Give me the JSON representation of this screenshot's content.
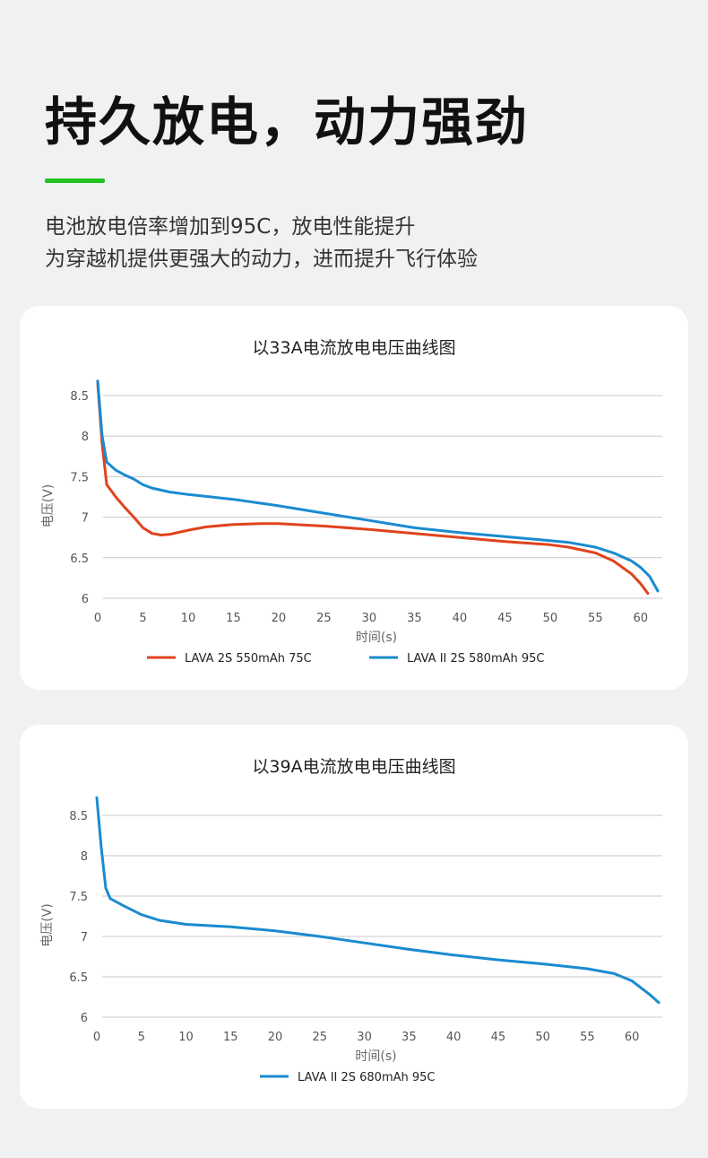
{
  "header": {
    "title": "持久放电，动力强劲",
    "subtitle_lines": [
      "电池放电倍率增加到95C，放电性能提升",
      "为穿越机提供更强大的动力，进而提升飞行体验"
    ],
    "accent_color": "#1fc423"
  },
  "chart_data": [
    {
      "type": "line",
      "title": "以33A电流放电电压曲线图",
      "xlabel": "时间(s)",
      "ylabel": "电压(V)",
      "xlim": [
        0,
        62
      ],
      "ylim": [
        6,
        8.5
      ],
      "x_ticks": [
        0,
        5,
        10,
        15,
        20,
        25,
        30,
        35,
        40,
        45,
        50,
        55,
        60
      ],
      "y_ticks": [
        6,
        6.5,
        7,
        7.5,
        8,
        8.5
      ],
      "grid": "horizontal",
      "legend_position": "bottom",
      "series": [
        {
          "name": "LAVA 2S 550mAh 75C",
          "color": "#e0431d",
          "points": [
            [
              0,
              8.65
            ],
            [
              0.5,
              7.9
            ],
            [
              1,
              7.4
            ],
            [
              2,
              7.25
            ],
            [
              3,
              7.12
            ],
            [
              4,
              7.0
            ],
            [
              5,
              6.87
            ],
            [
              6,
              6.8
            ],
            [
              7,
              6.78
            ],
            [
              8,
              6.79
            ],
            [
              10,
              6.84
            ],
            [
              12,
              6.88
            ],
            [
              15,
              6.91
            ],
            [
              18,
              6.92
            ],
            [
              20,
              6.92
            ],
            [
              25,
              6.89
            ],
            [
              30,
              6.85
            ],
            [
              35,
              6.8
            ],
            [
              40,
              6.75
            ],
            [
              45,
              6.7
            ],
            [
              50,
              6.66
            ],
            [
              52,
              6.63
            ],
            [
              55,
              6.56
            ],
            [
              57,
              6.46
            ],
            [
              59,
              6.3
            ],
            [
              60,
              6.18
            ],
            [
              60.8,
              6.06
            ]
          ]
        },
        {
          "name": "LAVA II 2S 580mAh 95C",
          "color": "#1a8bd0",
          "points": [
            [
              0,
              8.68
            ],
            [
              0.5,
              8.0
            ],
            [
              1,
              7.68
            ],
            [
              2,
              7.58
            ],
            [
              3,
              7.52
            ],
            [
              4,
              7.47
            ],
            [
              5,
              7.4
            ],
            [
              6,
              7.36
            ],
            [
              8,
              7.31
            ],
            [
              10,
              7.28
            ],
            [
              15,
              7.22
            ],
            [
              20,
              7.14
            ],
            [
              25,
              7.05
            ],
            [
              30,
              6.96
            ],
            [
              35,
              6.87
            ],
            [
              40,
              6.81
            ],
            [
              45,
              6.76
            ],
            [
              50,
              6.71
            ],
            [
              52,
              6.69
            ],
            [
              55,
              6.63
            ],
            [
              57,
              6.56
            ],
            [
              59,
              6.46
            ],
            [
              60,
              6.38
            ],
            [
              61,
              6.27
            ],
            [
              61.9,
              6.09
            ]
          ]
        }
      ]
    },
    {
      "type": "line",
      "title": "以39A电流放电电压曲线图",
      "xlabel": "时间(s)",
      "ylabel": "电压(V)",
      "xlim": [
        0,
        63
      ],
      "ylim": [
        6,
        8.5
      ],
      "x_ticks": [
        0,
        5,
        10,
        15,
        20,
        25,
        30,
        35,
        40,
        45,
        50,
        55,
        60
      ],
      "y_ticks": [
        6,
        6.5,
        7,
        7.5,
        8,
        8.5
      ],
      "grid": "horizontal",
      "legend_position": "bottom",
      "series": [
        {
          "name": "LAVA II 2S 680mAh 95C",
          "color": "#1a8bd0",
          "points": [
            [
              0,
              8.72
            ],
            [
              0.5,
              8.1
            ],
            [
              1,
              7.6
            ],
            [
              1.5,
              7.47
            ],
            [
              3,
              7.38
            ],
            [
              5,
              7.27
            ],
            [
              7,
              7.2
            ],
            [
              10,
              7.15
            ],
            [
              15,
              7.12
            ],
            [
              20,
              7.07
            ],
            [
              25,
              7.0
            ],
            [
              30,
              6.92
            ],
            [
              35,
              6.84
            ],
            [
              40,
              6.77
            ],
            [
              45,
              6.71
            ],
            [
              50,
              6.66
            ],
            [
              55,
              6.6
            ],
            [
              58,
              6.54
            ],
            [
              60,
              6.45
            ],
            [
              62,
              6.28
            ],
            [
              63,
              6.18
            ]
          ]
        }
      ]
    }
  ]
}
